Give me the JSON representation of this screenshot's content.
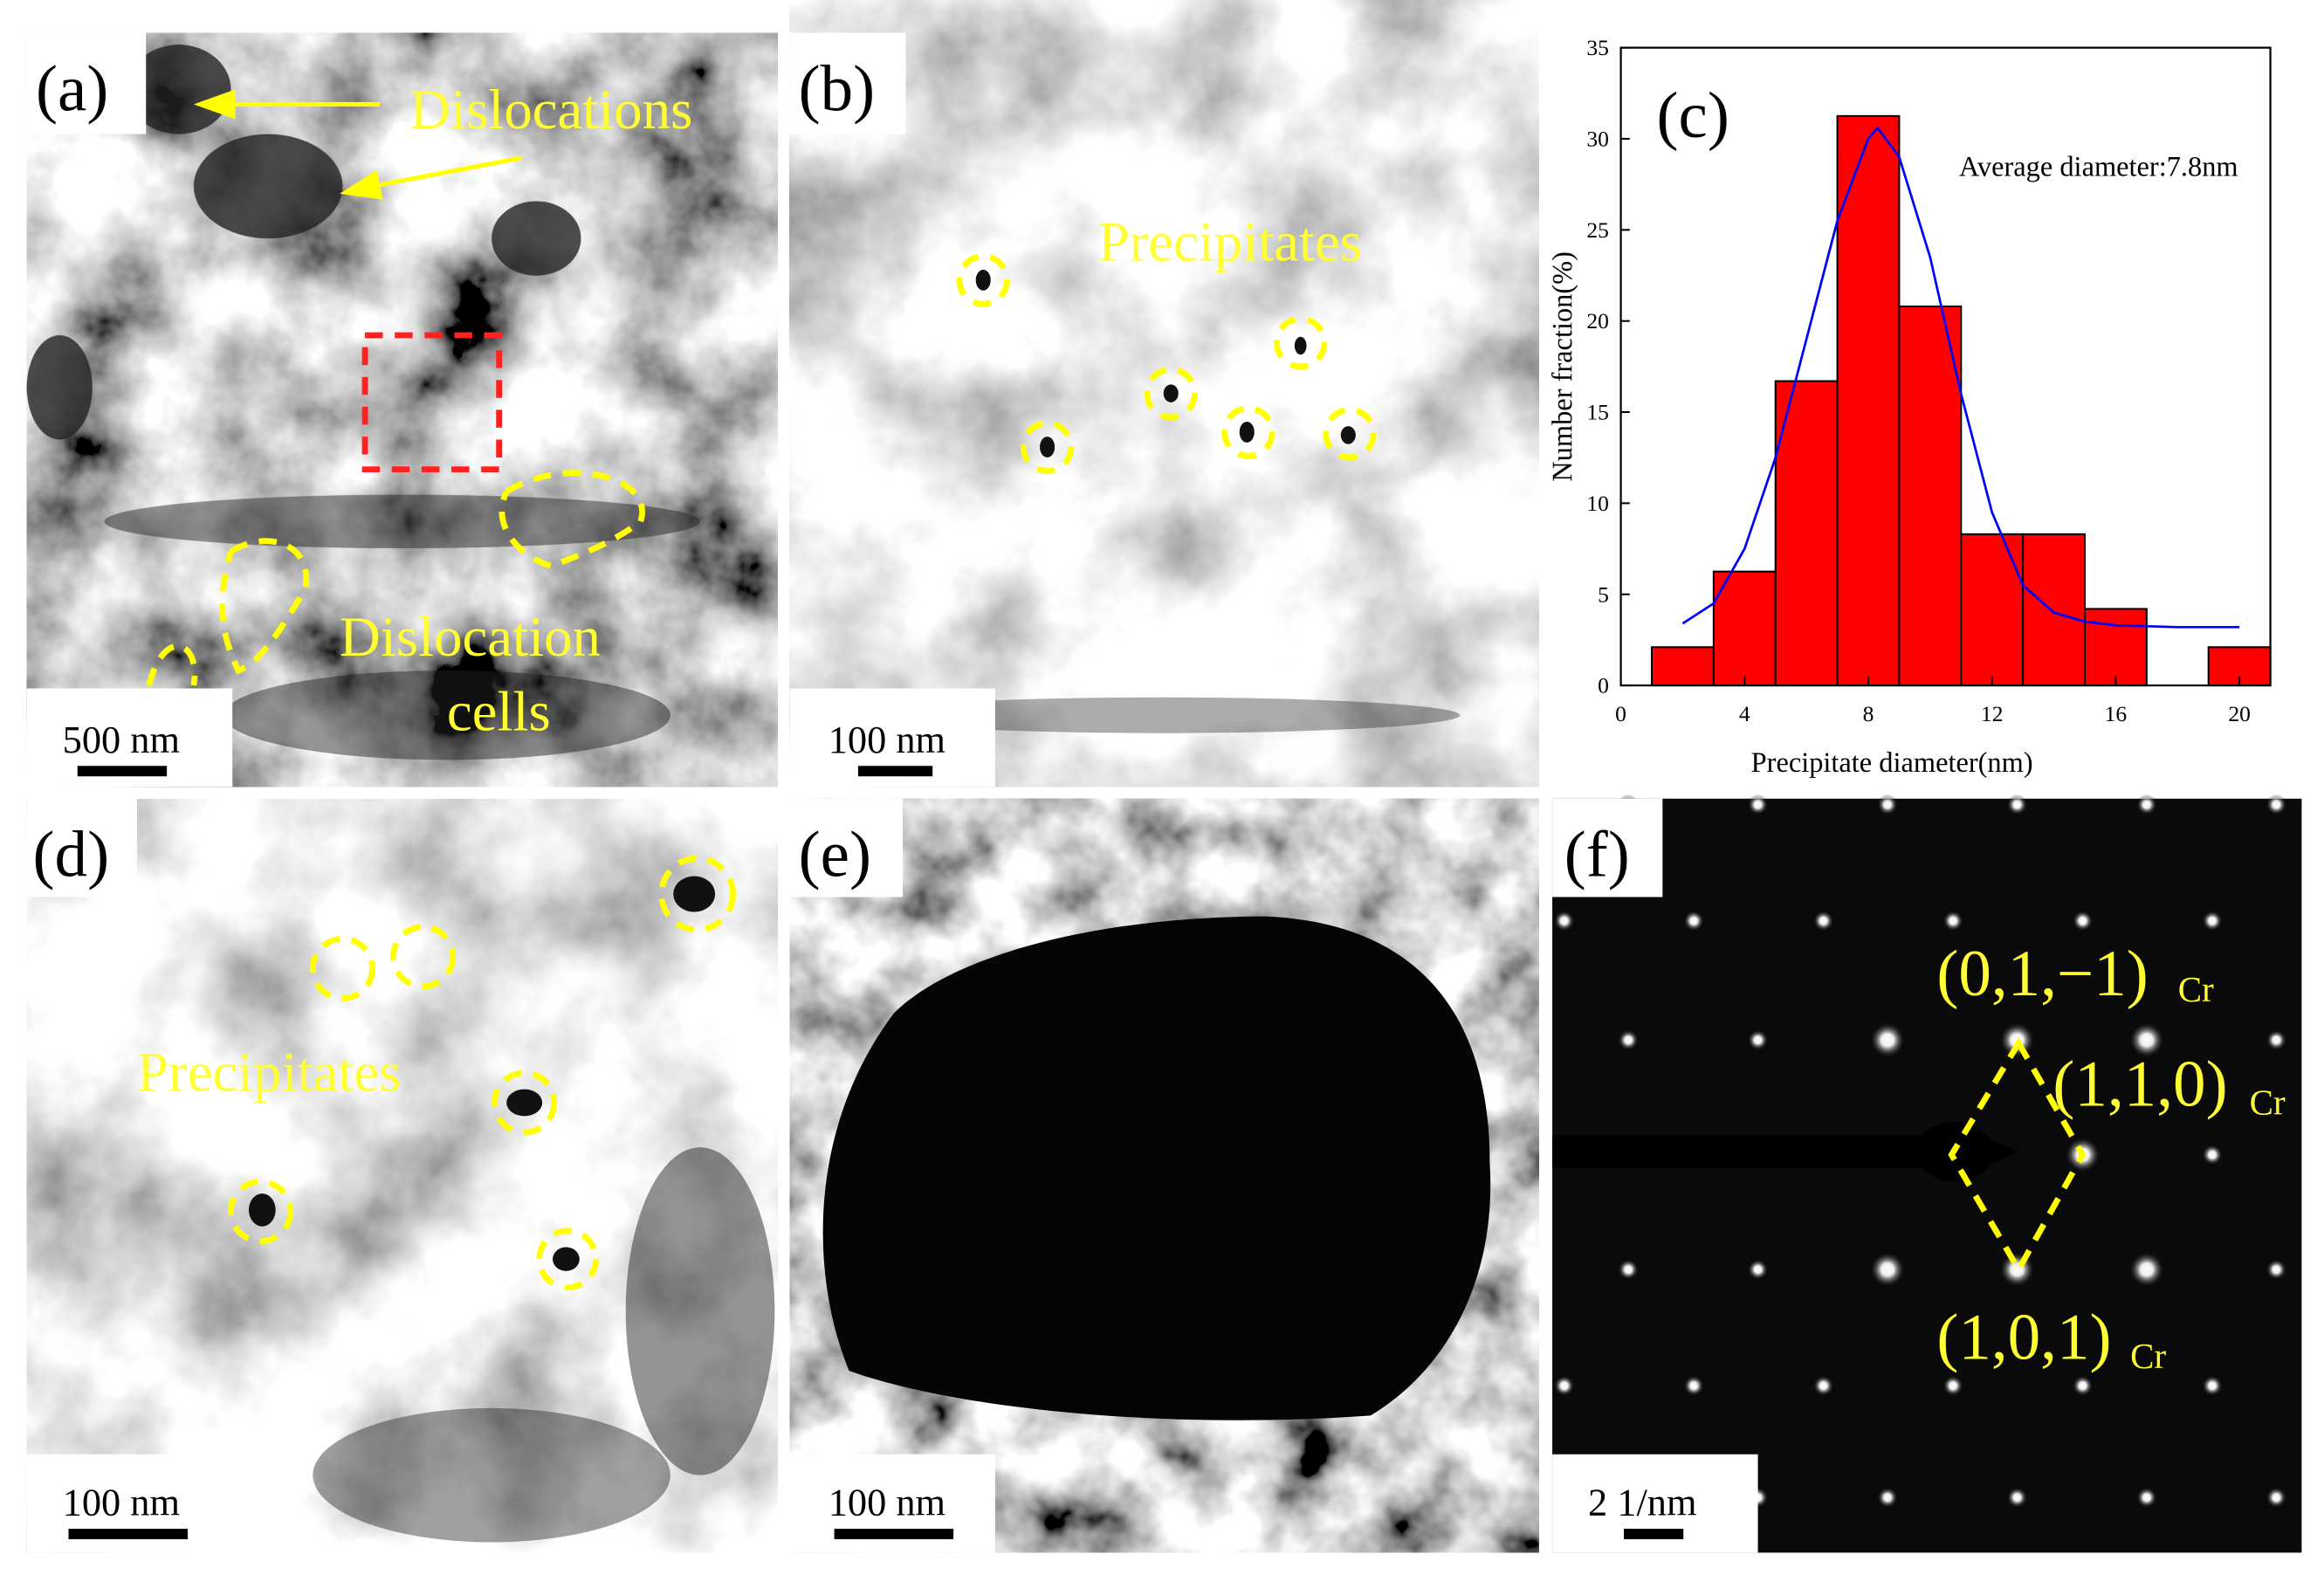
{
  "panels": [
    {
      "label": "(a)",
      "annotations": [
        "Dislocations",
        "Dislocation",
        "cells"
      ],
      "scale_bar": "500 nm"
    },
    {
      "label": "(b)",
      "annotations": [
        "Precipitates"
      ],
      "scale_bar": "100 nm"
    },
    {
      "label": "(d)",
      "annotations": [
        "Precipitates"
      ],
      "scale_bar": "100 nm"
    },
    {
      "label": "(e)",
      "scale_bar": "100 nm"
    },
    {
      "label": "(f)",
      "scale_bar": "2 1/nm",
      "indices": [
        {
          "text": "(0,1,−1)",
          "sub": "Cr"
        },
        {
          "text": "(1,1,0)",
          "sub": "Cr"
        },
        {
          "text": "(1,0,1)",
          "sub": "Cr"
        }
      ]
    }
  ],
  "chart_data": {
    "type": "histogram",
    "label": "(c)",
    "annotation": "Average diameter:7.8nm",
    "xlabel": "Precipitate diameter(nm)",
    "ylabel": "Number fraction(%)",
    "bins": [
      1,
      3,
      5,
      7,
      9,
      11,
      13,
      15,
      17,
      19,
      21
    ],
    "values": [
      2.1,
      6.25,
      16.7,
      31.25,
      20.8,
      8.3,
      8.3,
      4.2,
      0,
      2.1
    ],
    "color": "#ff0000",
    "xlim": [
      0,
      21
    ],
    "ylim": [
      0,
      35
    ],
    "xticks": [
      0,
      4,
      8,
      12,
      16,
      20
    ],
    "yticks": [
      0,
      5,
      10,
      15,
      20,
      25,
      30,
      35
    ],
    "fit_line": {
      "color": "#0000ff",
      "x": [
        2,
        3,
        4,
        5,
        6,
        7,
        8,
        8.3,
        9,
        10,
        11,
        12,
        13,
        14,
        15,
        16,
        18,
        20
      ],
      "y": [
        3.4,
        4.5,
        7.5,
        12.5,
        19,
        25.5,
        30,
        30.6,
        29,
        23.5,
        16,
        9.5,
        5.5,
        4,
        3.5,
        3.3,
        3.2,
        3.2
      ]
    }
  }
}
